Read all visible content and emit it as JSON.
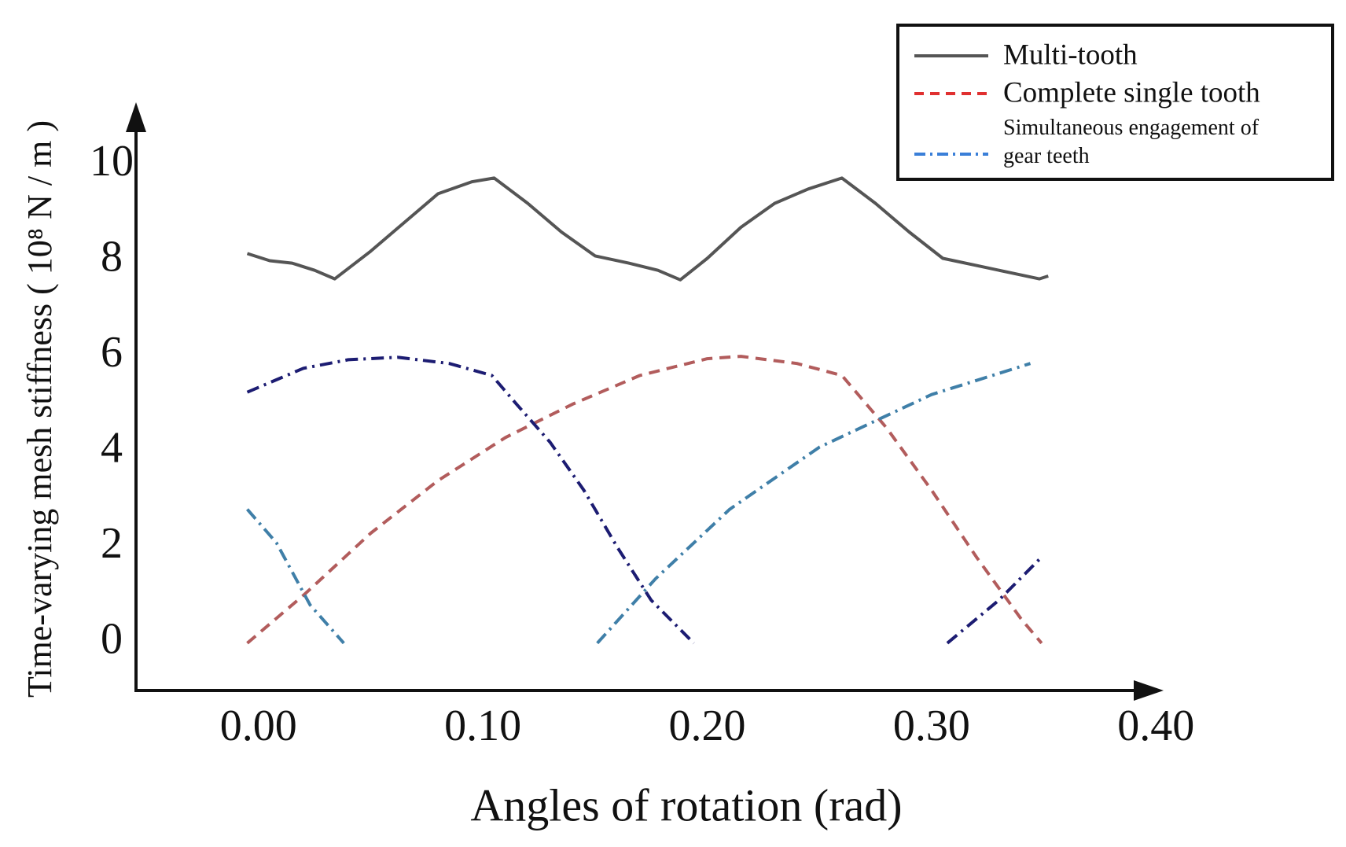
{
  "chart_data": {
    "type": "line",
    "xlabel": "Angles of rotation (rad)",
    "ylabel": "Time-varying mesh stiffness ( 10⁸ N / m )",
    "xlim": [
      -0.0546,
      0.402
    ],
    "ylim": [
      -0.99,
      11.2
    ],
    "xticks": [
      {
        "value": 0,
        "label": "0.00"
      },
      {
        "value": 0.1,
        "label": "0.10"
      },
      {
        "value": 0.2,
        "label": "0.20"
      },
      {
        "value": 0.3,
        "label": "0.30"
      },
      {
        "value": 0.4,
        "label": "0.40"
      }
    ],
    "yticks": [
      0,
      2,
      4,
      6,
      8,
      10
    ],
    "legend": "upper right",
    "series": [
      {
        "name": "Multi-tooth",
        "color": "#555555",
        "dash": "solid",
        "line_colors": [
          "#555555"
        ],
        "x": [
          -0.005,
          0.005,
          0.015,
          0.025,
          0.034,
          0.05,
          0.065,
          0.08,
          0.095,
          0.105,
          0.12,
          0.135,
          0.15,
          0.165,
          0.178,
          0.188,
          0.2,
          0.215,
          0.23,
          0.245,
          0.26,
          0.275,
          0.29,
          0.305,
          0.32,
          0.335,
          0.348,
          0.352
        ],
        "values": [
          8.15,
          8.0,
          7.95,
          7.8,
          7.62,
          8.2,
          8.8,
          9.4,
          9.65,
          9.73,
          9.2,
          8.6,
          8.1,
          7.95,
          7.8,
          7.6,
          8.05,
          8.7,
          9.2,
          9.5,
          9.73,
          9.2,
          8.6,
          8.05,
          7.9,
          7.75,
          7.62,
          7.68
        ]
      },
      {
        "name": "Complete single tooth",
        "color": "#e03030",
        "dash": "dashed",
        "line_colors": [
          "#b25c5c"
        ],
        "x": [
          -0.005,
          0.02,
          0.05,
          0.08,
          0.11,
          0.14,
          0.17,
          0.2,
          0.215,
          0.24,
          0.26,
          0.28,
          0.3,
          0.32,
          0.34,
          0.349
        ],
        "values": [
          0,
          1.0,
          2.3,
          3.4,
          4.3,
          5.0,
          5.6,
          5.95,
          6.0,
          5.85,
          5.6,
          4.5,
          3.2,
          1.8,
          0.5,
          0
        ]
      },
      {
        "name": "Simultaneous engagement of gear teeth",
        "color": "#3a7fd8",
        "dash": "dashdot",
        "line_colors": [
          "#1c1c72",
          "#3f7fa8",
          "#3f7fa8",
          "#1c1c72"
        ],
        "x": [
          -0.005,
          0.02,
          0.04,
          0.062,
          0.085,
          0.104,
          0.115,
          0.13,
          0.145,
          0.16,
          0.175,
          0.194,
          null,
          -0.005,
          0.008,
          0.023,
          0.038,
          null,
          0.151,
          0.177,
          0.21,
          0.25,
          0.3,
          0.344,
          null,
          0.307,
          0.33,
          0.349
        ],
        "values": [
          5.25,
          5.75,
          5.93,
          5.98,
          5.85,
          5.6,
          5.0,
          4.2,
          3.2,
          2.0,
          0.9,
          0,
          null,
          2.8,
          2.1,
          0.8,
          0,
          null,
          0,
          1.35,
          2.8,
          4.1,
          5.2,
          5.85,
          null,
          0,
          0.9,
          1.8
        ]
      }
    ]
  }
}
